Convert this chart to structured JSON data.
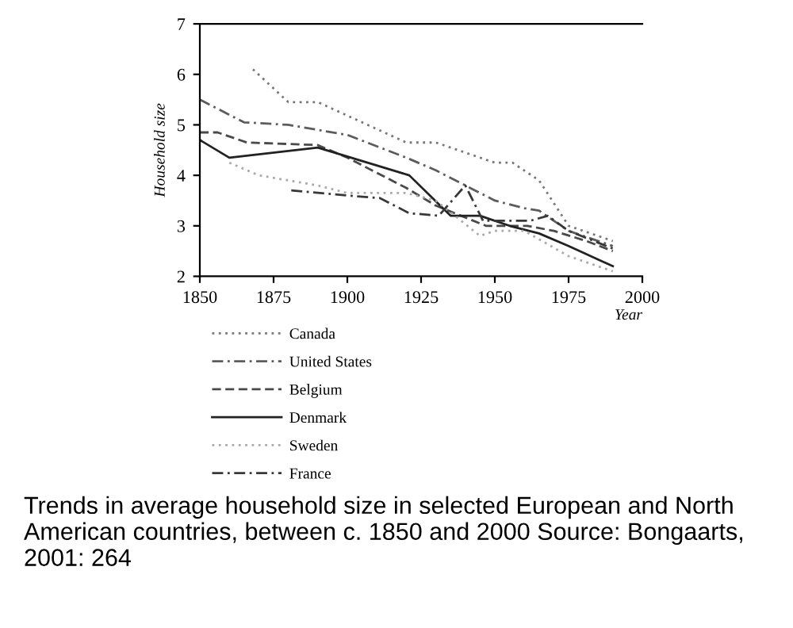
{
  "chart_data": {
    "type": "line",
    "xlabel": "Year",
    "ylabel": "Household size",
    "xlim": [
      1850,
      2000
    ],
    "ylim": [
      2,
      7
    ],
    "xticks": [
      1850,
      1875,
      1900,
      1925,
      1950,
      1975,
      2000
    ],
    "yticks": [
      2,
      3,
      4,
      5,
      6,
      7
    ],
    "grid": false,
    "legend": "bottom",
    "marker": "none",
    "series": [
      {
        "name": "Canada",
        "color": "#777777",
        "line_style": "dotted",
        "x": [
          1868,
          1880,
          1890,
          1920,
          1930,
          1950,
          1956,
          1965,
          1975,
          1990
        ],
        "values": [
          6.1,
          5.45,
          5.45,
          4.65,
          4.65,
          4.25,
          4.25,
          3.9,
          3.0,
          2.7
        ]
      },
      {
        "name": "United States",
        "color": "#5c5c5c",
        "line_style": "dashdot",
        "x": [
          1850,
          1865,
          1880,
          1900,
          1920,
          1930,
          1940,
          1950,
          1960,
          1965,
          1975,
          1990
        ],
        "values": [
          5.5,
          5.05,
          5.0,
          4.8,
          4.35,
          4.1,
          3.8,
          3.5,
          3.35,
          3.3,
          2.9,
          2.6
        ]
      },
      {
        "name": "Belgium",
        "color": "#4a4a4a",
        "line_style": "dashed",
        "x": [
          1850,
          1856,
          1866,
          1890,
          1900,
          1920,
          1930,
          1947,
          1961,
          1970,
          1981,
          1990
        ],
        "values": [
          4.85,
          4.85,
          4.65,
          4.6,
          4.35,
          3.75,
          3.4,
          3.0,
          3.0,
          2.9,
          2.7,
          2.5
        ]
      },
      {
        "name": "Denmark",
        "color": "#222222",
        "line_style": "solid",
        "x": [
          1850,
          1860,
          1890,
          1921,
          1935,
          1945,
          1955,
          1965,
          1975,
          1990
        ],
        "values": [
          4.7,
          4.35,
          4.55,
          4.0,
          3.2,
          3.2,
          3.0,
          2.85,
          2.6,
          2.2
        ]
      },
      {
        "name": "Sweden",
        "color": "#aaaaaa",
        "line_style": "dotted",
        "x": [
          1860,
          1870,
          1890,
          1900,
          1920,
          1930,
          1945,
          1950,
          1960,
          1975,
          1990
        ],
        "values": [
          4.25,
          4.0,
          3.8,
          3.65,
          3.65,
          3.5,
          2.8,
          2.9,
          2.9,
          2.4,
          2.1
        ]
      },
      {
        "name": "France",
        "color": "#383838",
        "line_style": "dashdot",
        "x": [
          1881,
          1900,
          1911,
          1921,
          1931,
          1940,
          1946,
          1954,
          1962,
          1968,
          1975,
          1990
        ],
        "values": [
          3.7,
          3.6,
          3.55,
          3.25,
          3.2,
          3.8,
          3.1,
          3.1,
          3.1,
          3.2,
          2.9,
          2.55
        ]
      }
    ],
    "annotations": [
      "Trends in average household size in selected European and North American countries, between c. 1850 and 2000 Source: Bongaarts, 2001: 264"
    ]
  }
}
